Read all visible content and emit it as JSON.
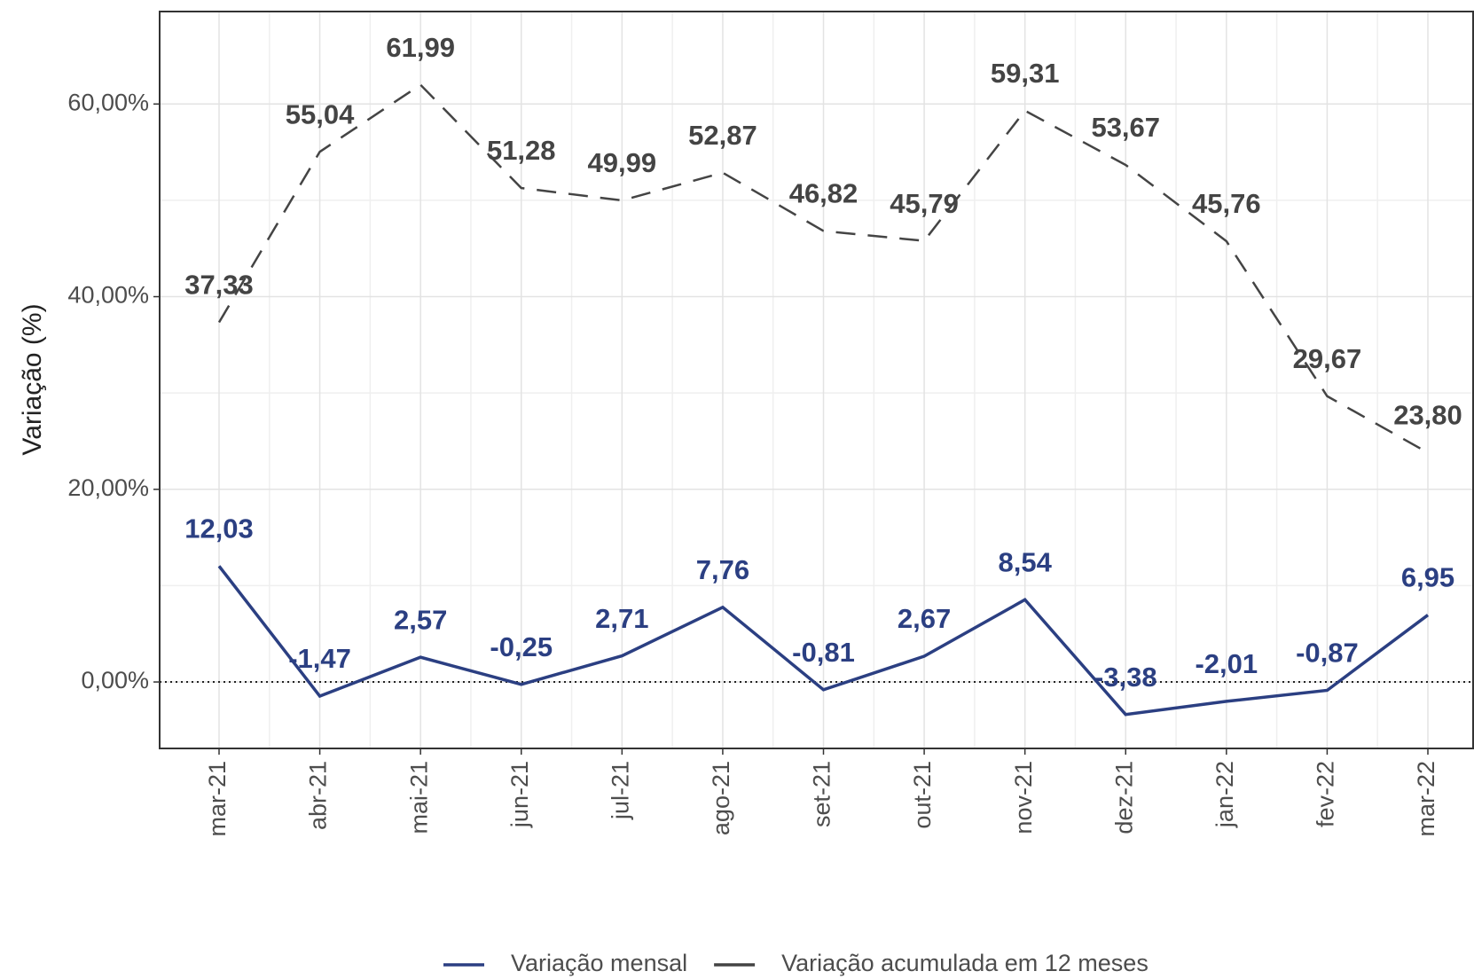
{
  "chart_data": {
    "type": "line",
    "y_label": "Variação (%)",
    "categories": [
      "mar-21",
      "abr-21",
      "mai-21",
      "jun-21",
      "jul-21",
      "ago-21",
      "set-21",
      "out-21",
      "nov-21",
      "dez-21",
      "jan-22",
      "fev-22",
      "mar-22"
    ],
    "series": [
      {
        "name": "Variação mensal",
        "color": "#2b3f82",
        "dash": "solid",
        "values": [
          12.03,
          -1.47,
          2.57,
          -0.25,
          2.71,
          7.76,
          -0.81,
          2.67,
          8.54,
          -3.38,
          -2.01,
          -0.87,
          6.95
        ],
        "value_labels": [
          "12,03",
          "-1,47",
          "2,57",
          "-0,25",
          "2,71",
          "7,76",
          "-0,81",
          "2,67",
          "8,54",
          "-3,38",
          "-2,01",
          "-0,87",
          "6,95"
        ]
      },
      {
        "name": "Variação acumulada em 12 meses",
        "color": "#444444",
        "dash": "dashed",
        "values": [
          37.33,
          55.04,
          61.99,
          51.28,
          49.99,
          52.87,
          46.82,
          45.79,
          59.31,
          53.67,
          45.76,
          29.67,
          23.8
        ],
        "value_labels": [
          "37,33",
          "55,04",
          "61,99",
          "51,28",
          "49,99",
          "52,87",
          "46,82",
          "45,79",
          "59,31",
          "53,67",
          "45,76",
          "29,67",
          "23,80"
        ]
      }
    ],
    "ylim": [
      -6.9,
      69.6
    ],
    "yticks": [
      {
        "value": 0,
        "label": "0,00%"
      },
      {
        "value": 20,
        "label": "20,00%"
      },
      {
        "value": 40,
        "label": "40,00%"
      },
      {
        "value": 60,
        "label": "60,00%"
      }
    ],
    "y_minor_grid": [
      10,
      30,
      50
    ],
    "reference_line": 0,
    "grid": true,
    "legend": "bottom"
  }
}
